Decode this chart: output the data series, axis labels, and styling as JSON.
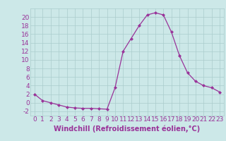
{
  "x": [
    0,
    1,
    2,
    3,
    4,
    5,
    6,
    7,
    8,
    9,
    10,
    11,
    12,
    13,
    14,
    15,
    16,
    17,
    18,
    19,
    20,
    21,
    22,
    23
  ],
  "y": [
    2,
    0.5,
    0,
    -0.5,
    -1,
    -1.2,
    -1.3,
    -1.3,
    -1.4,
    -1.5,
    3.5,
    12,
    15,
    18,
    20.5,
    21,
    20.5,
    16.5,
    11,
    7,
    5,
    4,
    3.5,
    2.5
  ],
  "line_color": "#993399",
  "marker": "D",
  "marker_size": 2,
  "bg_color": "#cce8e8",
  "grid_color": "#aacccc",
  "xlabel": "Windchill (Refroidissement éolien,°C)",
  "xlabel_color": "#993399",
  "tick_color": "#993399",
  "xlim": [
    -0.5,
    23.5
  ],
  "ylim": [
    -3,
    22
  ],
  "yticks": [
    -2,
    0,
    2,
    4,
    6,
    8,
    10,
    12,
    14,
    16,
    18,
    20
  ],
  "xticks": [
    0,
    1,
    2,
    3,
    4,
    5,
    6,
    7,
    8,
    9,
    10,
    11,
    12,
    13,
    14,
    15,
    16,
    17,
    18,
    19,
    20,
    21,
    22,
    23
  ],
  "font_size": 6.5,
  "xlabel_fontsize": 7.0
}
